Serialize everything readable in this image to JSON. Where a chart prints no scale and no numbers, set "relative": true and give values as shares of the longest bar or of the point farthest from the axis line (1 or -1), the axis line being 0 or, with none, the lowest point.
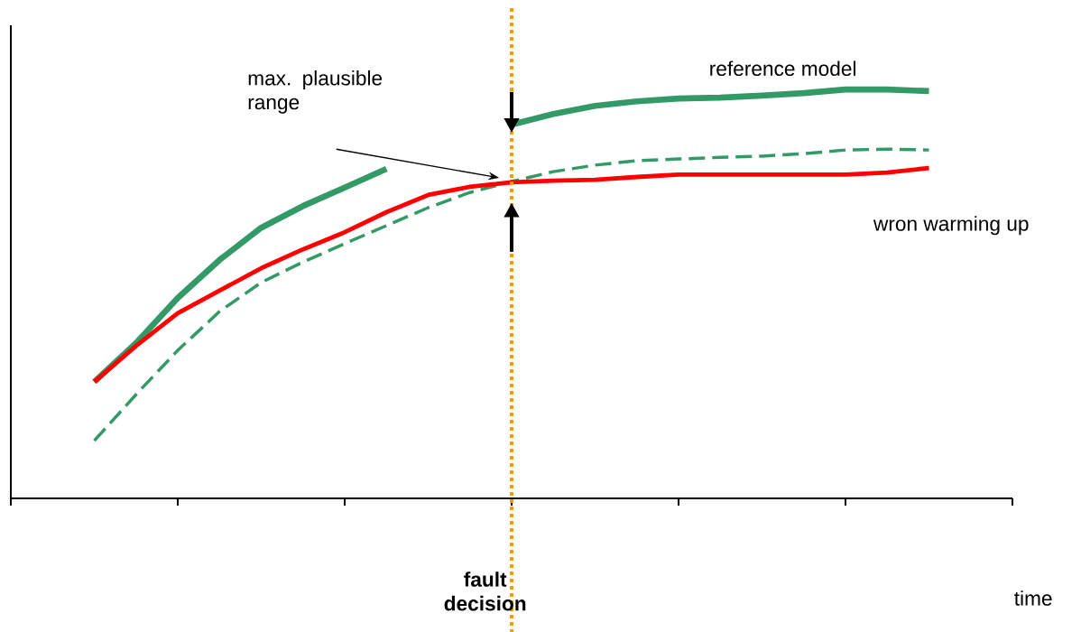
{
  "chart_data": {
    "type": "line",
    "relative": true,
    "categories": [
      null,
      null,
      null,
      null,
      null,
      null,
      null,
      null,
      null,
      null,
      null,
      null,
      null,
      null,
      null,
      null,
      null,
      null,
      null,
      null,
      null
    ],
    "series": [
      {
        "name": "reference model",
        "color": "#339966",
        "line_style": "solid",
        "values": [
          0.285,
          0.38,
          0.49,
          0.583,
          0.662,
          0.715,
          0.76,
          0.806,
          null,
          null,
          0.914,
          0.94,
          0.96,
          0.971,
          0.978,
          0.98,
          0.985,
          0.991,
          1.0,
          1.0,
          0.996
        ]
      },
      {
        "color": "#339966",
        "line_style": "dashed",
        "values": [
          0.141,
          0.254,
          0.362,
          0.457,
          0.528,
          0.578,
          0.623,
          0.667,
          0.711,
          0.748,
          0.775,
          0.799,
          0.815,
          0.826,
          0.83,
          0.834,
          0.837,
          0.843,
          0.852,
          0.854,
          0.852
        ]
      },
      {
        "name": "wron warming up",
        "color": "#ff0000",
        "line_style": "solid",
        "values": [
          0.285,
          0.373,
          0.453,
          0.508,
          0.563,
          0.609,
          0.651,
          0.7,
          0.742,
          0.762,
          0.773,
          0.777,
          0.779,
          0.786,
          0.792,
          0.792,
          0.792,
          0.792,
          0.792,
          0.797,
          0.808
        ]
      }
    ],
    "annotations": [
      "max. plausible range",
      "fault decision",
      "time"
    ]
  }
}
